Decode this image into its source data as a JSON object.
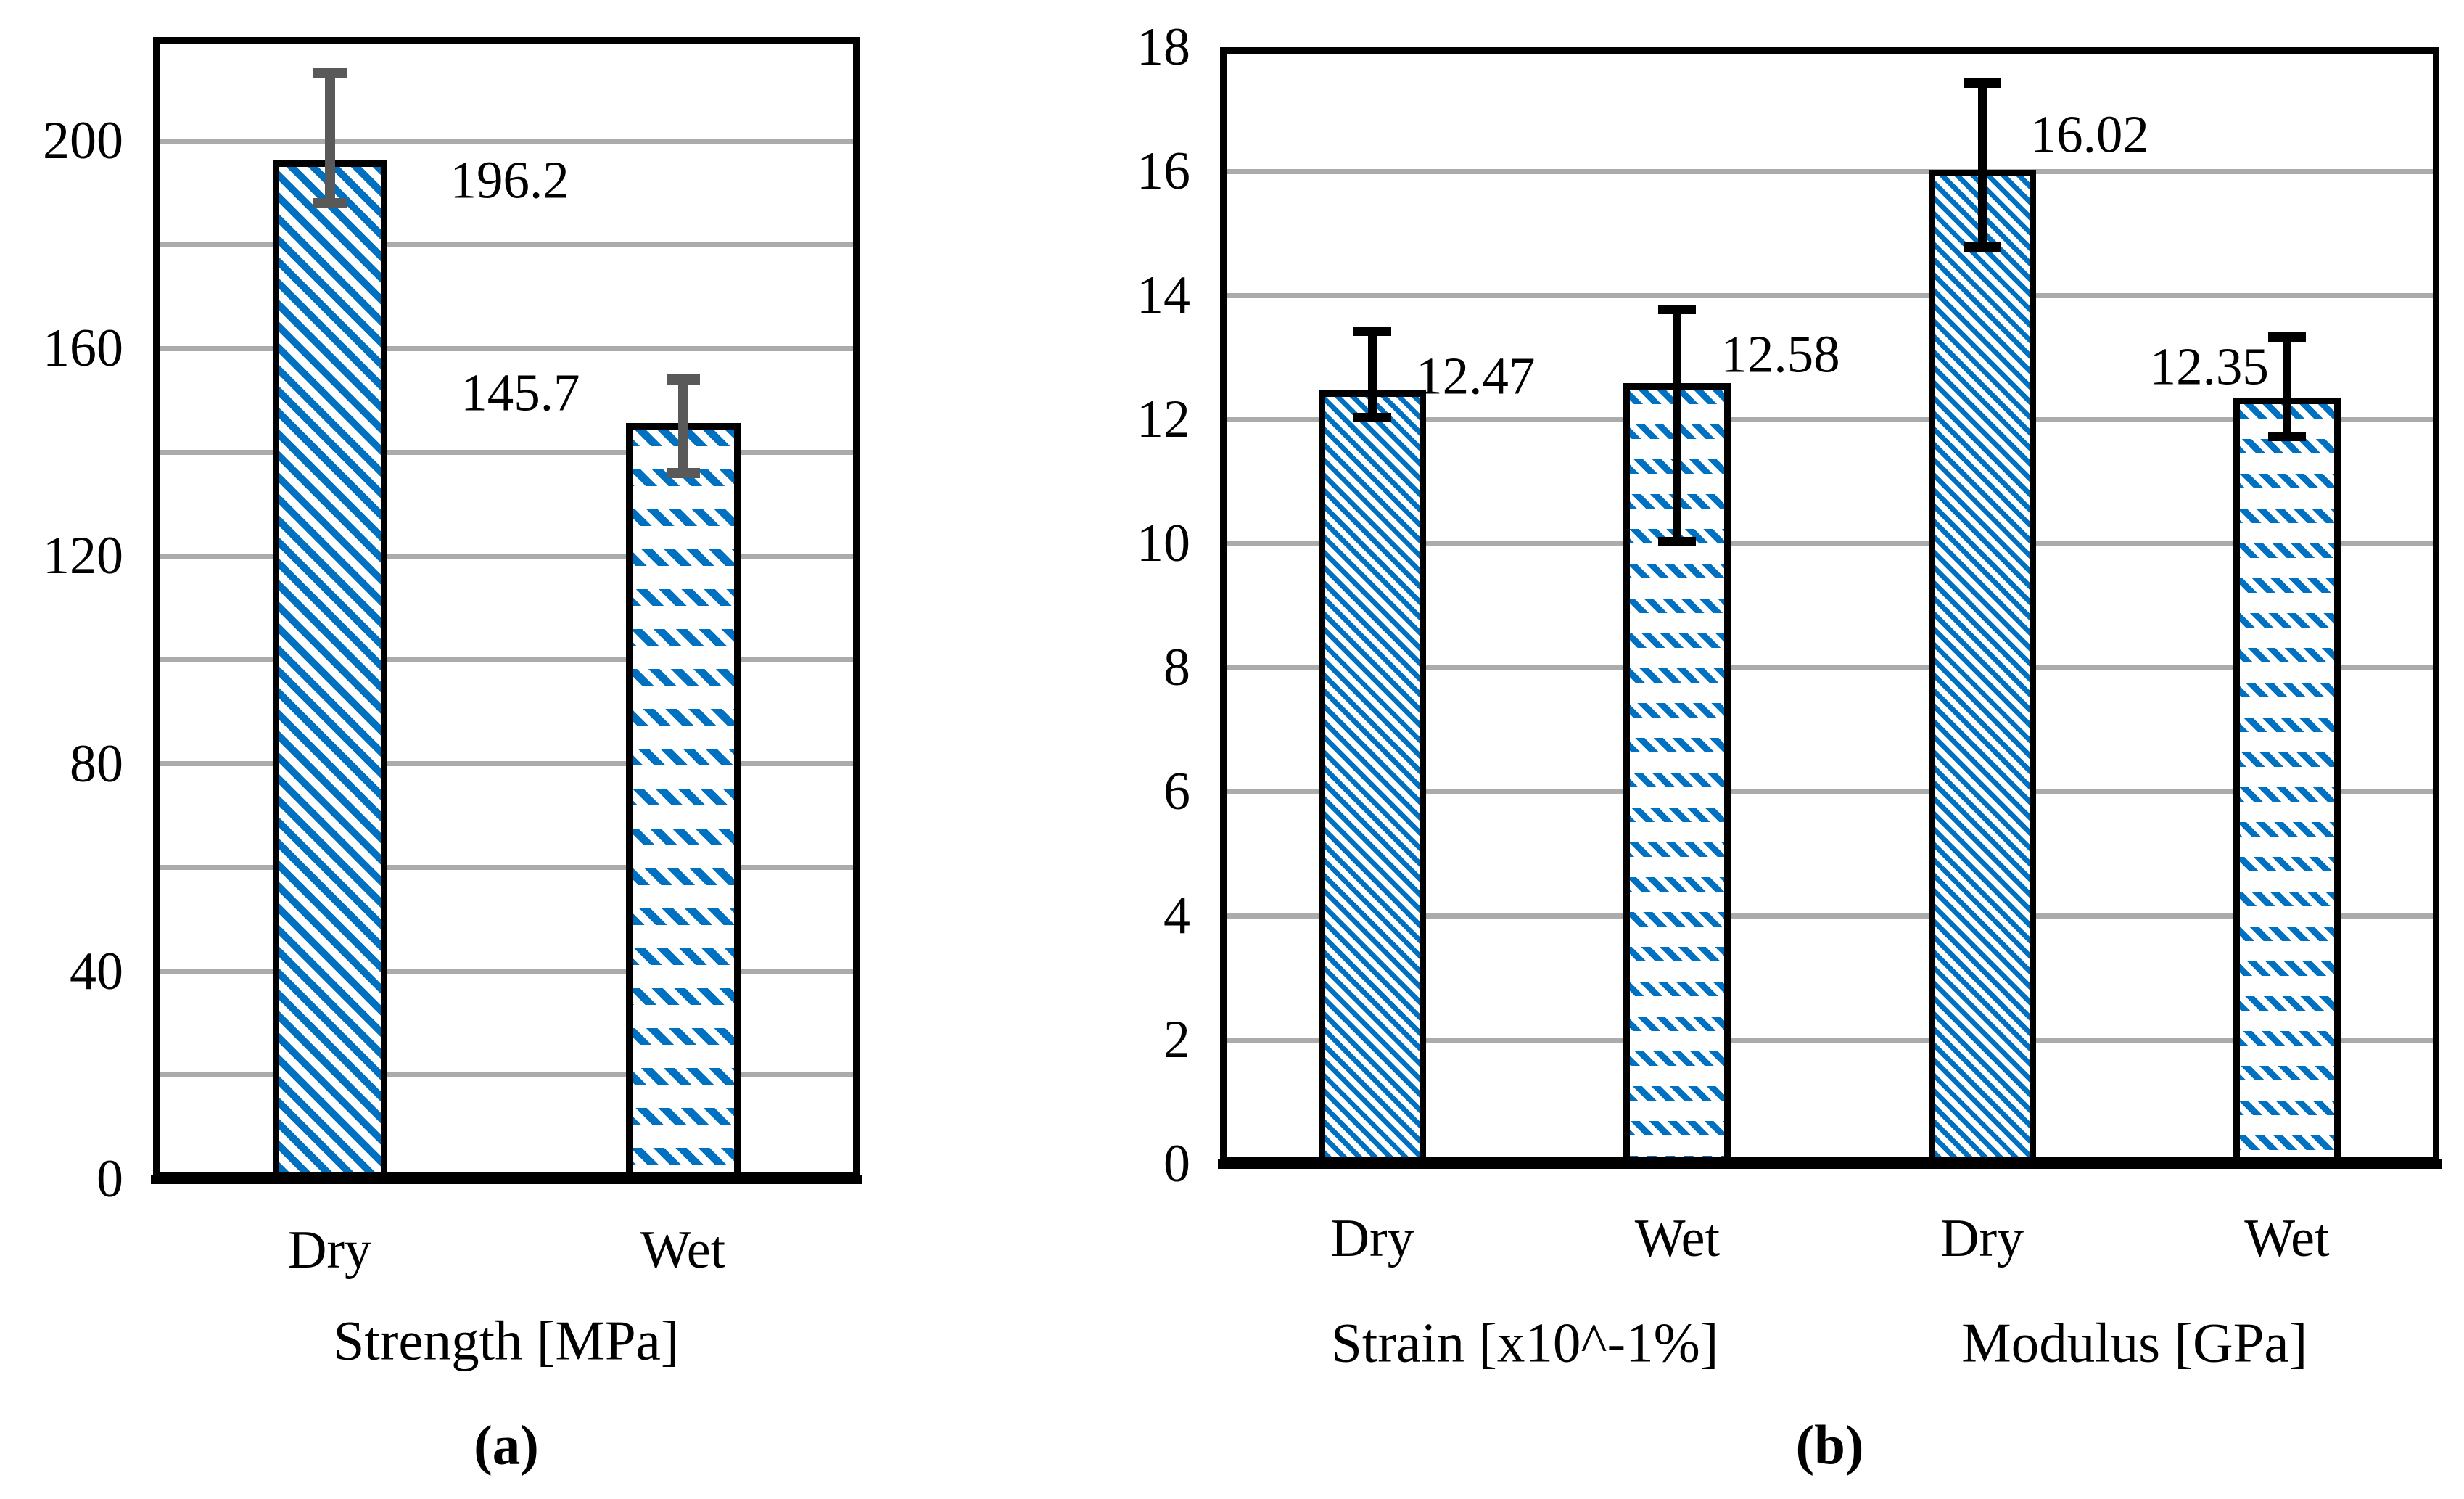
{
  "figure": {
    "background": "#ffffff",
    "bar_fill_color": "#0070C0",
    "bar_border_color": "#000000",
    "gridline_color": "#ABABAB",
    "text_color": "#000000"
  },
  "chart_data": [
    {
      "type": "bar",
      "panel": "a",
      "caption": "(a)",
      "xlabel": "Strength [MPa]",
      "ylabel": "",
      "ylim": [
        0,
        220
      ],
      "grid_step": 20,
      "grid": true,
      "legend": "none",
      "y_ticks": [
        0,
        40,
        80,
        120,
        160,
        200
      ],
      "categories": [
        "Dry",
        "Wet"
      ],
      "values": [
        196.2,
        145.7
      ],
      "data_labels": [
        "196.2",
        "145.7"
      ],
      "bar_patterns": [
        "diagonal-hatch",
        "dashed-diagonal-rows"
      ],
      "error_bar_color": "#595959",
      "error_bars": [
        [
          187,
          214
        ],
        [
          135,
          155
        ]
      ],
      "label_layout": [
        {
          "side": "right",
          "dx": 166,
          "at_value": 192.5
        },
        {
          "side": "left",
          "dx": -142,
          "at_value": 151.5
        }
      ]
    },
    {
      "type": "bar",
      "panel": "b",
      "caption": "(b)",
      "xlabel": "",
      "ylabel": "",
      "ylim": [
        0,
        18
      ],
      "grid_step": 2,
      "grid": true,
      "legend": "none",
      "y_ticks": [
        0,
        2,
        4,
        6,
        8,
        10,
        12,
        14,
        16,
        18
      ],
      "categories": [
        "Dry",
        "Wet",
        "Dry",
        "Wet"
      ],
      "groups": [
        {
          "label": "Strain [x10^-1%]",
          "bars": [
            0,
            1
          ]
        },
        {
          "label": "Modulus [GPa]",
          "bars": [
            2,
            3
          ]
        }
      ],
      "values": [
        12.47,
        12.58,
        16.02,
        12.35
      ],
      "data_labels": [
        "12.47",
        "12.58",
        "16.02",
        "12.35"
      ],
      "bar_patterns": [
        "diagonal-hatch",
        "dashed-diagonal-rows",
        "diagonal-hatch",
        "dashed-diagonal-rows"
      ],
      "error_bar_color": "#000000",
      "error_bars": [
        [
          11.95,
          13.5
        ],
        [
          9.95,
          13.85
        ],
        [
          14.7,
          17.5
        ],
        [
          11.65,
          13.4
        ]
      ],
      "label_layout": [
        {
          "side": "right",
          "dx": 60,
          "at_value": 12.7
        },
        {
          "side": "right",
          "dx": 60,
          "at_value": 13.05
        },
        {
          "side": "right",
          "dx": 66,
          "at_value": 16.6
        },
        {
          "side": "left",
          "dx": -25,
          "at_value": 12.85
        }
      ]
    }
  ]
}
